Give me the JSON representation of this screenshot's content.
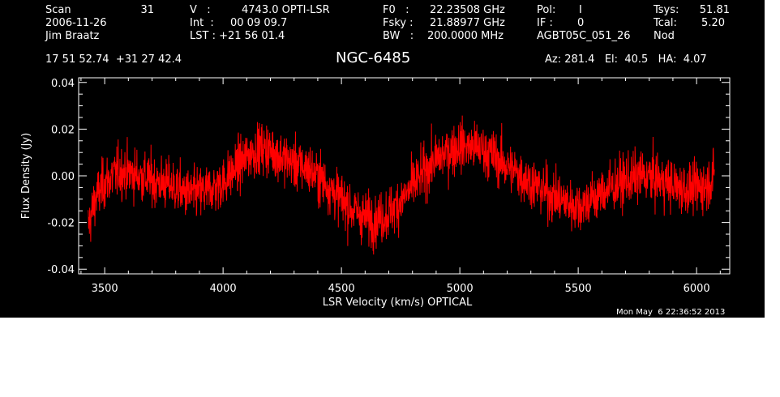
{
  "header": {
    "scan_label": "Scan",
    "scan_value": "31",
    "date": "2006-11-26",
    "observer": "Jim Braatz",
    "v_label": "V   :",
    "v_value": "4743.0 OPTI-LSR",
    "int_label": "Int  :",
    "int_value": "00 09 09.7",
    "lst_label": "LST : +21 56 01.4",
    "f0_label": "F0   :",
    "f0_value": "22.23508 GHz",
    "fsky_label": "Fsky :",
    "fsky_value": "21.88977 GHz",
    "bw_label": "BW   :",
    "bw_value": "200.0000 MHz",
    "pol_label": "Pol:",
    "pol_value": "I",
    "if_label": "IF :",
    "if_value": "0",
    "project": "AGBT05C_051_26",
    "tsys_label": "Tsys:",
    "tsys_value": "51.81",
    "tcal_label": "Tcal:",
    "tcal_value": "5.20",
    "mode": "Nod",
    "coords": "17 51 52.74  +31 27 42.4",
    "source": "NGC-6485",
    "az_el_ha": "Az: 281.4   El:  40.5   HA:  4.07",
    "timestamp": "Mon May  6 22:36:52 2013"
  },
  "colors": {
    "background": "#000000",
    "axes": "#ffffff",
    "trace": "#ff0000"
  },
  "chart_data": {
    "type": "line",
    "xlabel": "LSR Velocity (km/s) OPTICAL",
    "ylabel": "Flux Density (Jy)",
    "xlim": [
      3390,
      6140
    ],
    "ylim": [
      -0.042,
      0.042
    ],
    "xticks": [
      3500,
      4000,
      4500,
      5000,
      5500,
      6000
    ],
    "yticks": [
      -0.04,
      -0.02,
      0.0,
      0.02,
      0.04
    ],
    "xtick_labels": [
      "3500",
      "4000",
      "4500",
      "5000",
      "5500",
      "6000"
    ],
    "ytick_labels": [
      "-0.04",
      "-0.02",
      "0.00",
      "0.02",
      "0.04"
    ],
    "series": [
      {
        "color": "#ff0000",
        "x_start": 3430,
        "x_end": 6075,
        "baseline_x": [
          3430,
          3460,
          3500,
          3560,
          3620,
          3700,
          3780,
          3850,
          3920,
          4000,
          4060,
          4120,
          4160,
          4200,
          4250,
          4300,
          4360,
          4420,
          4480,
          4540,
          4600,
          4650,
          4700,
          4760,
          4820,
          4880,
          4940,
          5000,
          5060,
          5100,
          5150,
          5200,
          5260,
          5320,
          5380,
          5440,
          5500,
          5560,
          5620,
          5700,
          5780,
          5850,
          5920,
          5980,
          6040,
          6075
        ],
        "baseline_y": [
          -0.022,
          -0.01,
          -0.003,
          0.002,
          0.001,
          -0.002,
          -0.004,
          -0.008,
          -0.007,
          -0.003,
          0.004,
          0.01,
          0.012,
          0.011,
          0.008,
          0.005,
          0.003,
          -0.002,
          -0.008,
          -0.014,
          -0.018,
          -0.019,
          -0.016,
          -0.01,
          -0.002,
          0.005,
          0.01,
          0.013,
          0.012,
          0.011,
          0.008,
          0.004,
          0.0,
          -0.004,
          -0.008,
          -0.011,
          -0.013,
          -0.01,
          -0.006,
          -0.002,
          0.0,
          -0.002,
          -0.005,
          -0.006,
          -0.004,
          0.0
        ],
        "noise_rms": 0.0055
      }
    ]
  }
}
